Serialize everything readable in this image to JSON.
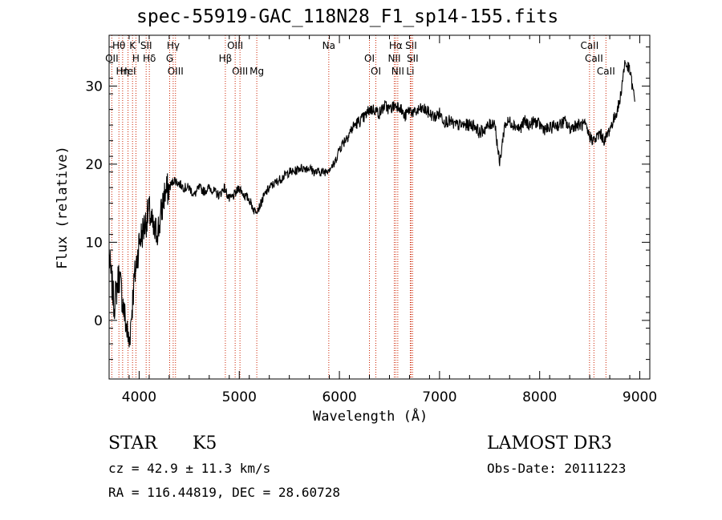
{
  "chart_data": {
    "type": "line",
    "title": "spec-55919-GAC_118N28_F1_sp14-155.fits",
    "xlabel": "Wavelength (Å)",
    "ylabel": "Flux (relative)",
    "xlim": [
      3700,
      9100
    ],
    "ylim": [
      -7.5,
      36.5
    ],
    "xticks": [
      4000,
      5000,
      6000,
      7000,
      8000,
      9000
    ],
    "yticks": [
      0,
      10,
      20,
      30
    ],
    "grid": false,
    "series": [
      {
        "x": [
          3700,
          3750,
          3800,
          3850,
          3900,
          3950,
          4000,
          4050,
          4100,
          4150,
          4200,
          4250,
          4300,
          4350,
          4400,
          4450,
          4500,
          4550,
          4600,
          4650,
          4700,
          4750,
          4800,
          4850,
          4900,
          4950,
          5000,
          5050,
          5100,
          5150,
          5200,
          5250,
          5300,
          5350,
          5400,
          5450,
          5500,
          5550,
          5600,
          5650,
          5700,
          5750,
          5800,
          5850,
          5900,
          5950,
          6000,
          6050,
          6100,
          6150,
          6200,
          6250,
          6300,
          6350,
          6400,
          6450,
          6500,
          6550,
          6600,
          6650,
          6700,
          6750,
          6800,
          6850,
          6900,
          6950,
          7000,
          7050,
          7100,
          7150,
          7200,
          7250,
          7300,
          7350,
          7400,
          7450,
          7500,
          7550,
          7600,
          7650,
          7700,
          7750,
          7800,
          7850,
          7900,
          7950,
          8000,
          8050,
          8100,
          8150,
          8200,
          8250,
          8300,
          8350,
          8400,
          8450,
          8500,
          8550,
          8600,
          8650,
          8700,
          8750,
          8800,
          8850,
          8900,
          8950
        ],
        "y": [
          8,
          2,
          6,
          1,
          -3,
          5,
          10,
          12,
          14,
          11,
          12,
          16,
          17,
          18,
          17.5,
          17,
          17,
          16,
          17,
          16.5,
          17,
          16.5,
          16,
          17,
          15.5,
          16,
          17,
          16,
          15.5,
          14,
          14.5,
          16,
          17,
          17.5,
          18,
          18.5,
          19,
          19,
          19.5,
          19.5,
          19.5,
          19,
          19,
          19,
          19.5,
          20,
          22,
          23,
          24,
          25,
          25.5,
          26,
          27,
          27,
          26.5,
          27.5,
          27,
          27.5,
          27.5,
          26,
          27,
          26.5,
          27,
          27,
          26.5,
          26,
          26.5,
          25.5,
          25.5,
          25,
          25,
          25,
          25,
          25,
          24,
          24.5,
          25,
          25.5,
          20,
          25,
          25.5,
          25,
          24.5,
          25.5,
          25,
          25.5,
          25,
          24.5,
          24.5,
          25,
          25,
          25.5,
          24.5,
          25,
          25,
          25,
          23.5,
          23,
          24,
          23,
          24.5,
          26,
          28,
          33,
          32,
          28
        ]
      }
    ],
    "lines": [
      {
        "name": "Hθ",
        "x": 3798
      },
      {
        "name": "OII",
        "x": 3727
      },
      {
        "name": "Hη",
        "x": 3835
      },
      {
        "name": "K",
        "x": 3934
      },
      {
        "name": "H",
        "x": 3968
      },
      {
        "name": "HeI",
        "x": 3889
      },
      {
        "name": "SII",
        "x": 4070
      },
      {
        "name": "Hδ",
        "x": 4102
      },
      {
        "name": "OIII",
        "x": 4363
      },
      {
        "name": "Hγ",
        "x": 4340
      },
      {
        "name": "G",
        "x": 4305
      },
      {
        "name": "OIII",
        "x": 5007
      },
      {
        "name": "OIII",
        "x": 4959
      },
      {
        "name": "Hβ",
        "x": 4861
      },
      {
        "name": "Mg",
        "x": 5175
      },
      {
        "name": "Na",
        "x": 5894
      },
      {
        "name": "OI",
        "x": 6300
      },
      {
        "name": "OI",
        "x": 6364
      },
      {
        "name": "Hα",
        "x": 6563
      },
      {
        "name": "NII",
        "x": 6548
      },
      {
        "name": "NII",
        "x": 6583
      },
      {
        "name": "SII",
        "x": 6716
      },
      {
        "name": "SII",
        "x": 6731
      },
      {
        "name": "Li",
        "x": 6708
      },
      {
        "name": "CaII",
        "x": 8498
      },
      {
        "name": "CaII",
        "x": 8542
      },
      {
        "name": "CaII",
        "x": 8662
      }
    ]
  },
  "info": {
    "object_class": "STAR",
    "subclass": "K5",
    "survey": "LAMOST DR3",
    "cz": "cz = 42.9 ± 11.3 km/s",
    "obs_date": "Obs-Date: 20111223",
    "coords": "RA = 116.44819, DEC =  28.60728"
  },
  "colors": {
    "spectrum": "#000000",
    "line_markers": "#cc2200"
  }
}
